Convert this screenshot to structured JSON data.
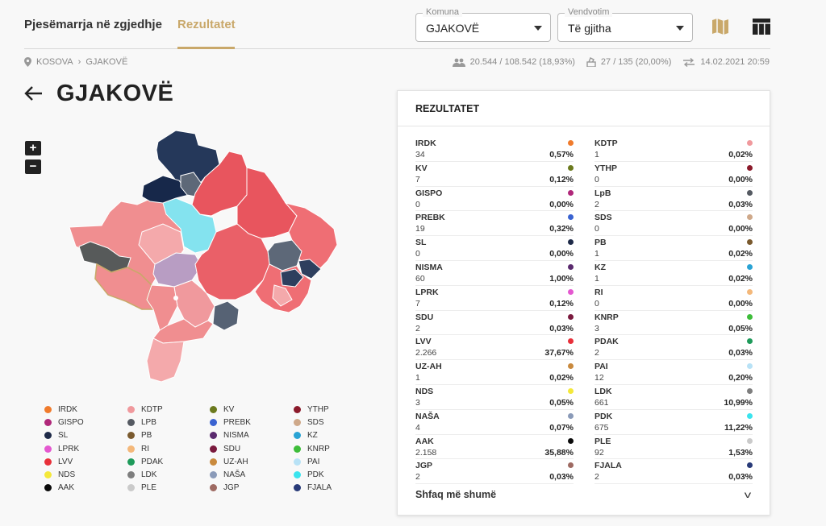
{
  "tabs": {
    "participation": "Pjesëmarrja në zgjedhje",
    "results": "Rezultatet"
  },
  "filters": {
    "municipality": {
      "label": "Komuna",
      "value": "GJAKOVË"
    },
    "voting_place": {
      "label": "Vendvotim",
      "value": "Të gjitha"
    }
  },
  "breadcrumb": {
    "country": "KOSOVA",
    "municipality": "GJAKOVË"
  },
  "stats": {
    "voters": "20.544 / 108.542 (18,93%)",
    "stations": "27 / 135 (20,00%)",
    "updated": "14.02.2021 20:59"
  },
  "page_title": "GJAKOVË",
  "zoom": {
    "in": "+",
    "out": "−"
  },
  "legend": [
    {
      "name": "IRDK",
      "color": "#f07b2c"
    },
    {
      "name": "KDTP",
      "color": "#f0999d"
    },
    {
      "name": "KV",
      "color": "#6b7a1e"
    },
    {
      "name": "YTHP",
      "color": "#8b1a2b"
    },
    {
      "name": "GISPO",
      "color": "#b0287a"
    },
    {
      "name": "LPB",
      "color": "#555a62"
    },
    {
      "name": "PREBK",
      "color": "#3a63d1"
    },
    {
      "name": "SDS",
      "color": "#cfa98a"
    },
    {
      "name": "SL",
      "color": "#1e2a48"
    },
    {
      "name": "PB",
      "color": "#7a5a2e"
    },
    {
      "name": "NISMA",
      "color": "#5a2a6e"
    },
    {
      "name": "KZ",
      "color": "#2aa3d4"
    },
    {
      "name": "LPRK",
      "color": "#e458d0"
    },
    {
      "name": "RI",
      "color": "#f4b87a"
    },
    {
      "name": "SDU",
      "color": "#7a1a3e"
    },
    {
      "name": "KNRP",
      "color": "#3ebd3a"
    },
    {
      "name": "LVV",
      "color": "#e8303a"
    },
    {
      "name": "PDAK",
      "color": "#1e9a5a"
    },
    {
      "name": "UZ-AH",
      "color": "#c98a3e"
    },
    {
      "name": "PAI",
      "color": "#b8e2f6"
    },
    {
      "name": "NDS",
      "color": "#f4e83a"
    },
    {
      "name": "LDK",
      "color": "#7e7e7e"
    },
    {
      "name": "NAŠA",
      "color": "#8a9ab8"
    },
    {
      "name": "PDK",
      "color": "#3ae4ee"
    },
    {
      "name": "AAK",
      "color": "#0a0a0a"
    },
    {
      "name": "PLE",
      "color": "#cacaca"
    },
    {
      "name": "JGP",
      "color": "#9e6a62"
    },
    {
      "name": "FJALA",
      "color": "#283a78"
    }
  ],
  "panel": {
    "title": "REZULTATET",
    "results": [
      {
        "name": "IRDK",
        "votes": "34",
        "pct": "0,57%",
        "color": "#f07b2c"
      },
      {
        "name": "KDTP",
        "votes": "1",
        "pct": "0,02%",
        "color": "#f0999d"
      },
      {
        "name": "KV",
        "votes": "7",
        "pct": "0,12%",
        "color": "#6b7a1e"
      },
      {
        "name": "YTHP",
        "votes": "0",
        "pct": "0,00%",
        "color": "#8b1a2b"
      },
      {
        "name": "GISPO",
        "votes": "0",
        "pct": "0,00%",
        "color": "#b0287a"
      },
      {
        "name": "LpB",
        "votes": "2",
        "pct": "0,03%",
        "color": "#555a62"
      },
      {
        "name": "PREBK",
        "votes": "19",
        "pct": "0,32%",
        "color": "#3a63d1"
      },
      {
        "name": "SDS",
        "votes": "0",
        "pct": "0,00%",
        "color": "#cfa98a"
      },
      {
        "name": "SL",
        "votes": "0",
        "pct": "0,00%",
        "color": "#1e2a48"
      },
      {
        "name": "PB",
        "votes": "1",
        "pct": "0,02%",
        "color": "#7a5a2e"
      },
      {
        "name": "NISMA",
        "votes": "60",
        "pct": "1,00%",
        "color": "#5a2a6e"
      },
      {
        "name": "KZ",
        "votes": "1",
        "pct": "0,02%",
        "color": "#2aa3d4"
      },
      {
        "name": "LPRK",
        "votes": "7",
        "pct": "0,12%",
        "color": "#e458d0"
      },
      {
        "name": "RI",
        "votes": "0",
        "pct": "0,00%",
        "color": "#f4b87a"
      },
      {
        "name": "SDU",
        "votes": "2",
        "pct": "0,03%",
        "color": "#7a1a3e"
      },
      {
        "name": "KNRP",
        "votes": "3",
        "pct": "0,05%",
        "color": "#3ebd3a"
      },
      {
        "name": "LVV",
        "votes": "2.266",
        "pct": "37,67%",
        "color": "#e8303a"
      },
      {
        "name": "PDAK",
        "votes": "2",
        "pct": "0,03%",
        "color": "#1e9a5a"
      },
      {
        "name": "UZ-AH",
        "votes": "1",
        "pct": "0,02%",
        "color": "#c98a3e"
      },
      {
        "name": "PAI",
        "votes": "12",
        "pct": "0,20%",
        "color": "#b8e2f6"
      },
      {
        "name": "NDS",
        "votes": "3",
        "pct": "0,05%",
        "color": "#f4e83a"
      },
      {
        "name": "LDK",
        "votes": "661",
        "pct": "10,99%",
        "color": "#7e7e7e"
      },
      {
        "name": "NAŠA",
        "votes": "4",
        "pct": "0,07%",
        "color": "#8a9ab8"
      },
      {
        "name": "PDK",
        "votes": "675",
        "pct": "11,22%",
        "color": "#3ae4ee"
      },
      {
        "name": "AAK",
        "votes": "2.158",
        "pct": "35,88%",
        "color": "#0a0a0a"
      },
      {
        "name": "PLE",
        "votes": "92",
        "pct": "1,53%",
        "color": "#cacaca"
      },
      {
        "name": "JGP",
        "votes": "2",
        "pct": "0,03%",
        "color": "#9e6a62"
      },
      {
        "name": "FJALA",
        "votes": "2",
        "pct": "0,03%",
        "color": "#283a78"
      }
    ],
    "show_more": "Shfaq më shumë"
  }
}
